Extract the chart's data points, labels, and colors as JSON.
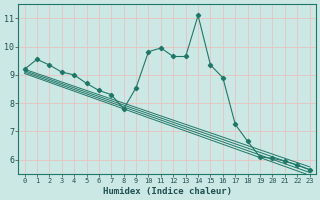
{
  "xlabel": "Humidex (Indice chaleur)",
  "bg_color": "#cce8e5",
  "grid_color": "#e8c4c0",
  "line_color": "#1e7868",
  "spine_color": "#1e7868",
  "xlim": [
    -0.5,
    23.5
  ],
  "ylim": [
    5.5,
    11.5
  ],
  "yticks": [
    6,
    7,
    8,
    9,
    10,
    11
  ],
  "xticks": [
    0,
    1,
    2,
    3,
    4,
    5,
    6,
    7,
    8,
    9,
    10,
    11,
    12,
    13,
    14,
    15,
    16,
    17,
    18,
    19,
    20,
    21,
    22,
    23
  ],
  "main_x": [
    0,
    1,
    2,
    3,
    4,
    5,
    6,
    7,
    8,
    9,
    10,
    11,
    12,
    13,
    14,
    15,
    16,
    17,
    18,
    19,
    20,
    21,
    22,
    23
  ],
  "main_y": [
    9.2,
    9.55,
    9.35,
    9.1,
    9.0,
    8.7,
    8.45,
    8.3,
    7.8,
    8.55,
    9.82,
    9.95,
    9.65,
    9.65,
    11.1,
    9.35,
    8.9,
    7.25,
    6.65,
    6.1,
    6.05,
    5.95,
    5.82,
    5.65
  ],
  "regression_lines": [
    [
      0,
      9.2,
      23,
      5.75
    ],
    [
      0,
      9.15,
      23,
      5.65
    ],
    [
      0,
      9.1,
      23,
      5.55
    ],
    [
      0,
      9.05,
      23,
      5.45
    ]
  ],
  "figwidth": 3.2,
  "figheight": 2.0,
  "dpi": 100
}
